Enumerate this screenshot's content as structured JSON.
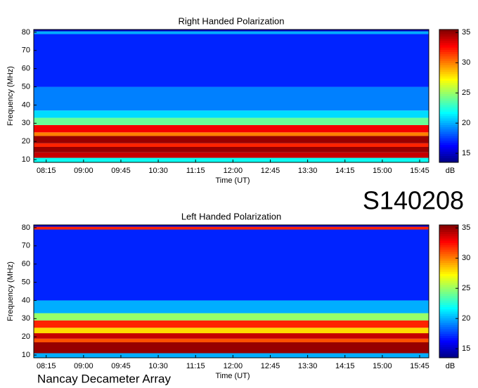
{
  "chart_data": [
    {
      "type": "heatmap",
      "title": "Right Handed Polarization",
      "xlabel": "Time (UT)",
      "ylabel": "Frequency (MHz)",
      "xlim": [
        480,
        956
      ],
      "xticks": [
        {
          "value": 495,
          "label": "08:15"
        },
        {
          "value": 540,
          "label": "09:00"
        },
        {
          "value": 585,
          "label": "09:45"
        },
        {
          "value": 630,
          "label": "10:30"
        },
        {
          "value": 675,
          "label": "11:15"
        },
        {
          "value": 720,
          "label": "12:00"
        },
        {
          "value": 765,
          "label": "12:45"
        },
        {
          "value": 810,
          "label": "13:30"
        },
        {
          "value": 855,
          "label": "14:15"
        },
        {
          "value": 900,
          "label": "15:00"
        },
        {
          "value": 945,
          "label": "15:45"
        }
      ],
      "ylim": [
        8.5,
        81.5
      ],
      "yticks": [
        10,
        20,
        30,
        40,
        50,
        60,
        70,
        80
      ],
      "ybins": [
        8.5,
        11,
        14,
        17,
        19,
        23,
        25,
        29,
        33,
        37,
        50,
        79,
        80.5,
        81.5
      ],
      "values": [
        22,
        34,
        35,
        32,
        35,
        30,
        33,
        24,
        21,
        19,
        17,
        20,
        15
      ],
      "zlim": [
        13.5,
        35.5
      ],
      "zticks": [
        15,
        20,
        25,
        30,
        35
      ],
      "colorbar_label": "dB"
    },
    {
      "type": "heatmap",
      "title": "Left Handed Polarization",
      "xlabel": "Time (UT)",
      "ylabel": "Frequency (MHz)",
      "xlim": [
        480,
        956
      ],
      "xticks": [
        {
          "value": 495,
          "label": "08:15"
        },
        {
          "value": 540,
          "label": "09:00"
        },
        {
          "value": 585,
          "label": "09:45"
        },
        {
          "value": 630,
          "label": "10:30"
        },
        {
          "value": 675,
          "label": "11:15"
        },
        {
          "value": 720,
          "label": "12:00"
        },
        {
          "value": 765,
          "label": "12:45"
        },
        {
          "value": 810,
          "label": "13:30"
        },
        {
          "value": 855,
          "label": "14:15"
        },
        {
          "value": 900,
          "label": "15:00"
        },
        {
          "value": 945,
          "label": "15:45"
        }
      ],
      "ylim": [
        8.5,
        81.5
      ],
      "yticks": [
        10,
        20,
        30,
        40,
        50,
        60,
        70,
        80
      ],
      "ybins": [
        8.5,
        11,
        17,
        19,
        22,
        25,
        29,
        33,
        40,
        79,
        80.5,
        81.5
      ],
      "values": [
        20,
        35,
        31,
        34,
        28,
        32,
        25,
        20,
        17,
        32,
        15
      ],
      "zlim": [
        13.5,
        35.5
      ],
      "zticks": [
        15,
        20,
        25,
        30,
        35
      ],
      "colorbar_label": "dB"
    }
  ],
  "label": "S140208",
  "footer": "Nancay Decameter Array"
}
